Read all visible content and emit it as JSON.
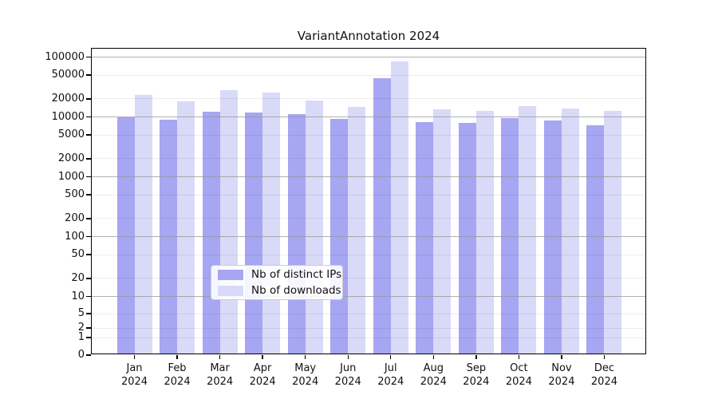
{
  "chart_data": {
    "type": "bar",
    "title": "VariantAnnotation 2024",
    "categories": [
      "Jan",
      "Feb",
      "Mar",
      "Apr",
      "May",
      "Jun",
      "Jul",
      "Aug",
      "Sep",
      "Oct",
      "Nov",
      "Dec"
    ],
    "year_label": "2024",
    "series": [
      {
        "name": "Nb of distinct IPs",
        "color": "#a6a6f2",
        "values": [
          9200,
          8400,
          11600,
          11000,
          10500,
          8800,
          42000,
          7800,
          7400,
          9000,
          8100,
          6800
        ]
      },
      {
        "name": "Nb of downloads",
        "color": "#d9d9f8",
        "values": [
          22000,
          17000,
          26500,
          24000,
          17500,
          14000,
          80000,
          12700,
          12000,
          14300,
          13200,
          11800
        ]
      }
    ],
    "y_ticks": [
      0,
      1,
      2,
      5,
      10,
      20,
      50,
      100,
      200,
      500,
      1000,
      2000,
      5000,
      10000,
      20000,
      50000,
      100000
    ],
    "y_scale": "log",
    "ylim": [
      0,
      100000
    ],
    "xlabel": "",
    "ylabel": "",
    "grid": true,
    "legend_position": "lower center"
  }
}
